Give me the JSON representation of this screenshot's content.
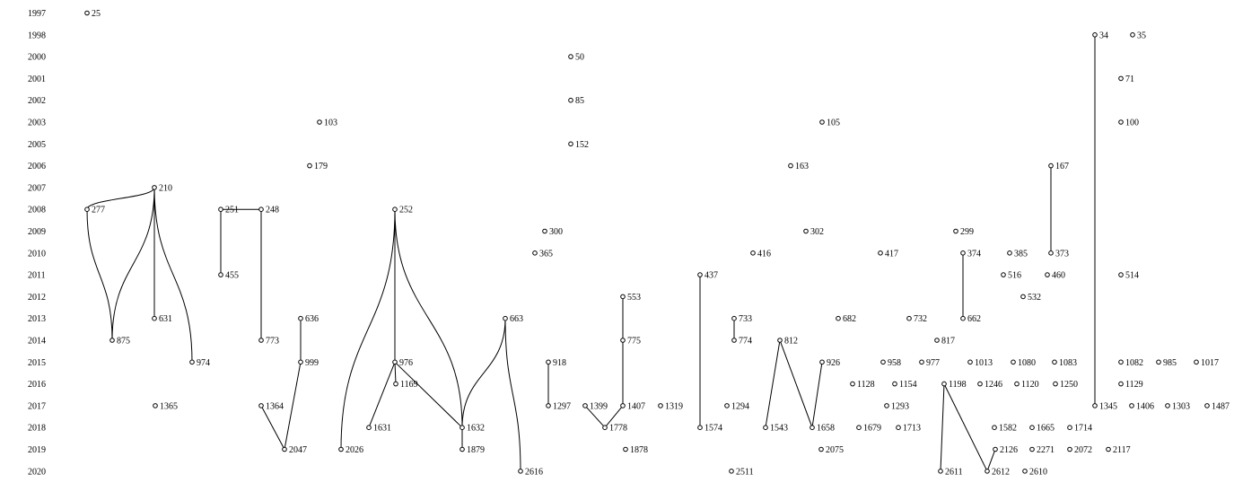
{
  "years": [
    "1997",
    "1998",
    "2000",
    "2001",
    "2002",
    "2003",
    "2005",
    "2006",
    "2007",
    "2008",
    "2009",
    "2010",
    "2011",
    "2012",
    "2013",
    "2014",
    "2015",
    "2016",
    "2017",
    "2018",
    "2019",
    "2020"
  ],
  "nodes": [
    {
      "id": "25",
      "year": "1997"
    },
    {
      "id": "34",
      "year": "1998"
    },
    {
      "id": "35",
      "year": "1998"
    },
    {
      "id": "50",
      "year": "2000"
    },
    {
      "id": "71",
      "year": "2001"
    },
    {
      "id": "85",
      "year": "2002"
    },
    {
      "id": "103",
      "year": "2003"
    },
    {
      "id": "105",
      "year": "2003"
    },
    {
      "id": "100",
      "year": "2003"
    },
    {
      "id": "152",
      "year": "2005"
    },
    {
      "id": "179",
      "year": "2006"
    },
    {
      "id": "163",
      "year": "2006"
    },
    {
      "id": "167",
      "year": "2006"
    },
    {
      "id": "210",
      "year": "2007"
    },
    {
      "id": "277",
      "year": "2008"
    },
    {
      "id": "251",
      "year": "2008"
    },
    {
      "id": "248",
      "year": "2008"
    },
    {
      "id": "252",
      "year": "2008"
    },
    {
      "id": "300",
      "year": "2009"
    },
    {
      "id": "302",
      "year": "2009"
    },
    {
      "id": "299",
      "year": "2009"
    },
    {
      "id": "365",
      "year": "2010"
    },
    {
      "id": "416",
      "year": "2010"
    },
    {
      "id": "417",
      "year": "2010"
    },
    {
      "id": "374",
      "year": "2010"
    },
    {
      "id": "385",
      "year": "2010"
    },
    {
      "id": "373",
      "year": "2010"
    },
    {
      "id": "455",
      "year": "2011"
    },
    {
      "id": "437",
      "year": "2011"
    },
    {
      "id": "516",
      "year": "2011"
    },
    {
      "id": "460",
      "year": "2011"
    },
    {
      "id": "514",
      "year": "2011"
    },
    {
      "id": "553",
      "year": "2012"
    },
    {
      "id": "532",
      "year": "2012"
    },
    {
      "id": "631",
      "year": "2013"
    },
    {
      "id": "636",
      "year": "2013"
    },
    {
      "id": "663",
      "year": "2013"
    },
    {
      "id": "733",
      "year": "2013"
    },
    {
      "id": "682",
      "year": "2013"
    },
    {
      "id": "732",
      "year": "2013"
    },
    {
      "id": "662",
      "year": "2013"
    },
    {
      "id": "875",
      "year": "2014"
    },
    {
      "id": "773",
      "year": "2014"
    },
    {
      "id": "775",
      "year": "2014"
    },
    {
      "id": "774",
      "year": "2014"
    },
    {
      "id": "812",
      "year": "2014"
    },
    {
      "id": "817",
      "year": "2014"
    },
    {
      "id": "974",
      "year": "2015"
    },
    {
      "id": "999",
      "year": "2015"
    },
    {
      "id": "976",
      "year": "2015"
    },
    {
      "id": "918",
      "year": "2015"
    },
    {
      "id": "926",
      "year": "2015"
    },
    {
      "id": "958",
      "year": "2015"
    },
    {
      "id": "977",
      "year": "2015"
    },
    {
      "id": "1013",
      "year": "2015"
    },
    {
      "id": "1080",
      "year": "2015"
    },
    {
      "id": "1083",
      "year": "2015"
    },
    {
      "id": "1082",
      "year": "2015"
    },
    {
      "id": "985",
      "year": "2015"
    },
    {
      "id": "1017",
      "year": "2015"
    },
    {
      "id": "1169",
      "year": "2016"
    },
    {
      "id": "1128",
      "year": "2016"
    },
    {
      "id": "1154",
      "year": "2016"
    },
    {
      "id": "1198",
      "year": "2016"
    },
    {
      "id": "1246",
      "year": "2016"
    },
    {
      "id": "1120",
      "year": "2016"
    },
    {
      "id": "1250",
      "year": "2016"
    },
    {
      "id": "1129",
      "year": "2016"
    },
    {
      "id": "1365",
      "year": "2017"
    },
    {
      "id": "1364",
      "year": "2017"
    },
    {
      "id": "1297",
      "year": "2017"
    },
    {
      "id": "1399",
      "year": "2017"
    },
    {
      "id": "1407",
      "year": "2017"
    },
    {
      "id": "1319",
      "year": "2017"
    },
    {
      "id": "1294",
      "year": "2017"
    },
    {
      "id": "1293",
      "year": "2017"
    },
    {
      "id": "1345",
      "year": "2017"
    },
    {
      "id": "1406",
      "year": "2017"
    },
    {
      "id": "1303",
      "year": "2017"
    },
    {
      "id": "1487",
      "year": "2017"
    },
    {
      "id": "1631",
      "year": "2018"
    },
    {
      "id": "1632",
      "year": "2018"
    },
    {
      "id": "1778",
      "year": "2018"
    },
    {
      "id": "1574",
      "year": "2018"
    },
    {
      "id": "1543",
      "year": "2018"
    },
    {
      "id": "1658",
      "year": "2018"
    },
    {
      "id": "1679",
      "year": "2018"
    },
    {
      "id": "1713",
      "year": "2018"
    },
    {
      "id": "1582",
      "year": "2018"
    },
    {
      "id": "1665",
      "year": "2018"
    },
    {
      "id": "1714",
      "year": "2018"
    },
    {
      "id": "2047",
      "year": "2019"
    },
    {
      "id": "2026",
      "year": "2019"
    },
    {
      "id": "1879",
      "year": "2019"
    },
    {
      "id": "1878",
      "year": "2019"
    },
    {
      "id": "2075",
      "year": "2019"
    },
    {
      "id": "2126",
      "year": "2019"
    },
    {
      "id": "2271",
      "year": "2019"
    },
    {
      "id": "2072",
      "year": "2019"
    },
    {
      "id": "2117",
      "year": "2019"
    },
    {
      "id": "2616",
      "year": "2020"
    },
    {
      "id": "2511",
      "year": "2020"
    },
    {
      "id": "2611",
      "year": "2020"
    },
    {
      "id": "2612",
      "year": "2020"
    },
    {
      "id": "2610",
      "year": "2020"
    }
  ],
  "edges": [
    [
      "210",
      "277"
    ],
    [
      "277",
      "875"
    ],
    [
      "210",
      "875"
    ],
    [
      "210",
      "631"
    ],
    [
      "210",
      "974"
    ],
    [
      "251",
      "248"
    ],
    [
      "251",
      "455"
    ],
    [
      "248",
      "773"
    ],
    [
      "252",
      "2026"
    ],
    [
      "252",
      "976"
    ],
    [
      "252",
      "1632"
    ],
    [
      "636",
      "999"
    ],
    [
      "999",
      "2047"
    ],
    [
      "1364",
      "2047"
    ],
    [
      "976",
      "1169"
    ],
    [
      "976",
      "1631"
    ],
    [
      "976",
      "1632"
    ],
    [
      "663",
      "1632"
    ],
    [
      "663",
      "2616"
    ],
    [
      "1632",
      "1879"
    ],
    [
      "918",
      "1297"
    ],
    [
      "553",
      "775"
    ],
    [
      "775",
      "1407"
    ],
    [
      "1399",
      "1778"
    ],
    [
      "1407",
      "1778"
    ],
    [
      "437",
      "1574"
    ],
    [
      "733",
      "774"
    ],
    [
      "812",
      "1543"
    ],
    [
      "812",
      "1658"
    ],
    [
      "926",
      "1658"
    ],
    [
      "374",
      "662"
    ],
    [
      "167",
      "373"
    ],
    [
      "34",
      "1345"
    ],
    [
      "1198",
      "2611"
    ],
    [
      "1198",
      "2612"
    ],
    [
      "2126",
      "2612"
    ]
  ]
}
